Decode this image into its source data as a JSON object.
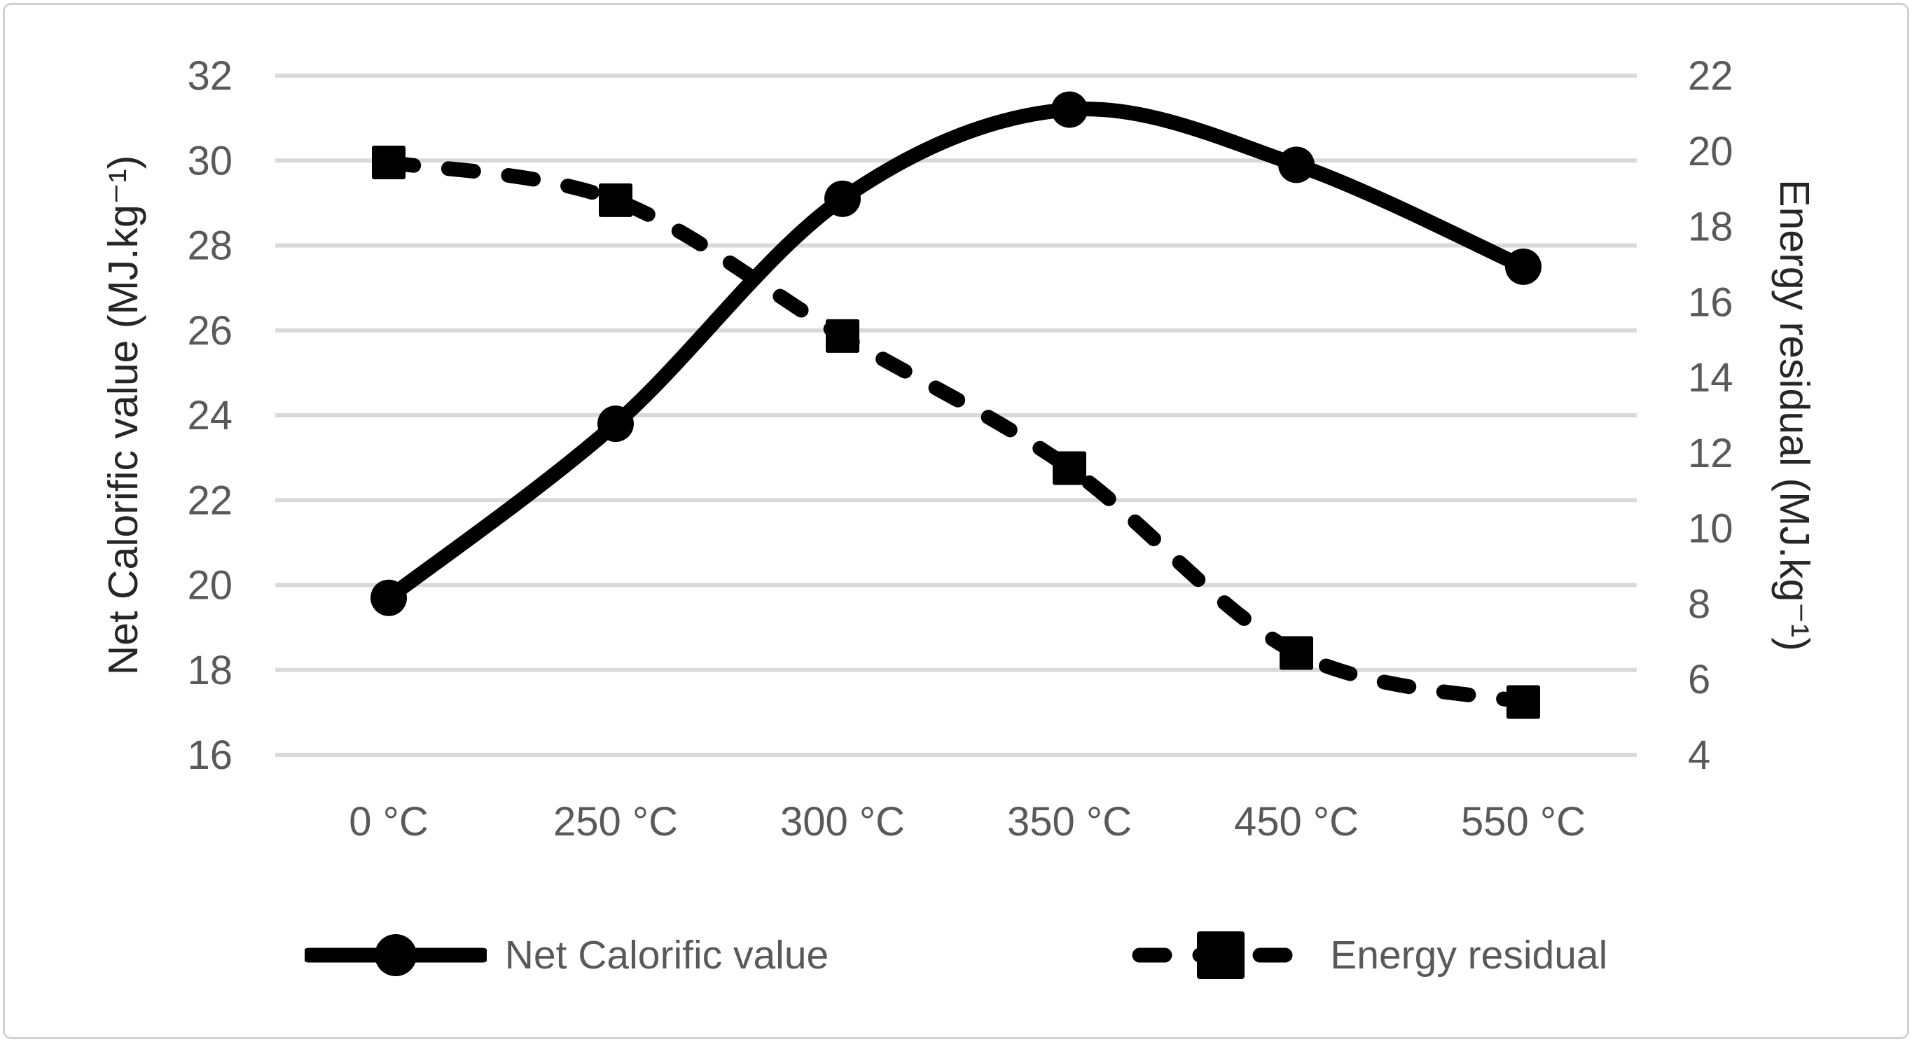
{
  "chart_data": {
    "type": "line",
    "title": "",
    "categories": [
      "0 °C",
      "250 °C",
      "300 °C",
      "350 °C",
      "450 °C",
      "550 °C"
    ],
    "series": [
      {
        "name": "Net Calorific value",
        "axis": "left",
        "line_style": "solid",
        "marker": "circle",
        "color": "#000000",
        "values": [
          19.7,
          23.8,
          29.1,
          31.2,
          29.9,
          27.5
        ]
      },
      {
        "name": "Energy residual",
        "axis": "right",
        "line_style": "dashed",
        "marker": "square",
        "color": "#000000",
        "values": [
          19.7,
          18.7,
          15.1,
          11.6,
          6.7,
          5.4
        ]
      }
    ],
    "xlabel": "",
    "ylabel_left": "Net Calorific value (MJ.kg⁻¹)",
    "ylabel_right": "Energy residual (MJ.kg⁻¹)",
    "y_left": {
      "min": 16,
      "max": 32,
      "step": 2,
      "ticks": [
        16,
        18,
        20,
        22,
        24,
        26,
        28,
        30,
        32
      ]
    },
    "y_right": {
      "min": 4,
      "max": 22,
      "step": 2,
      "ticks": [
        4,
        6,
        8,
        10,
        12,
        14,
        16,
        18,
        20,
        22
      ]
    },
    "grid": "horizontal",
    "legend_position": "bottom",
    "colors": {
      "series": "#000000",
      "gridline": "#d9d9d9",
      "tick_text": "#595959",
      "axis_title_text": "#262626",
      "frame_border": "#d2d2d2"
    }
  }
}
